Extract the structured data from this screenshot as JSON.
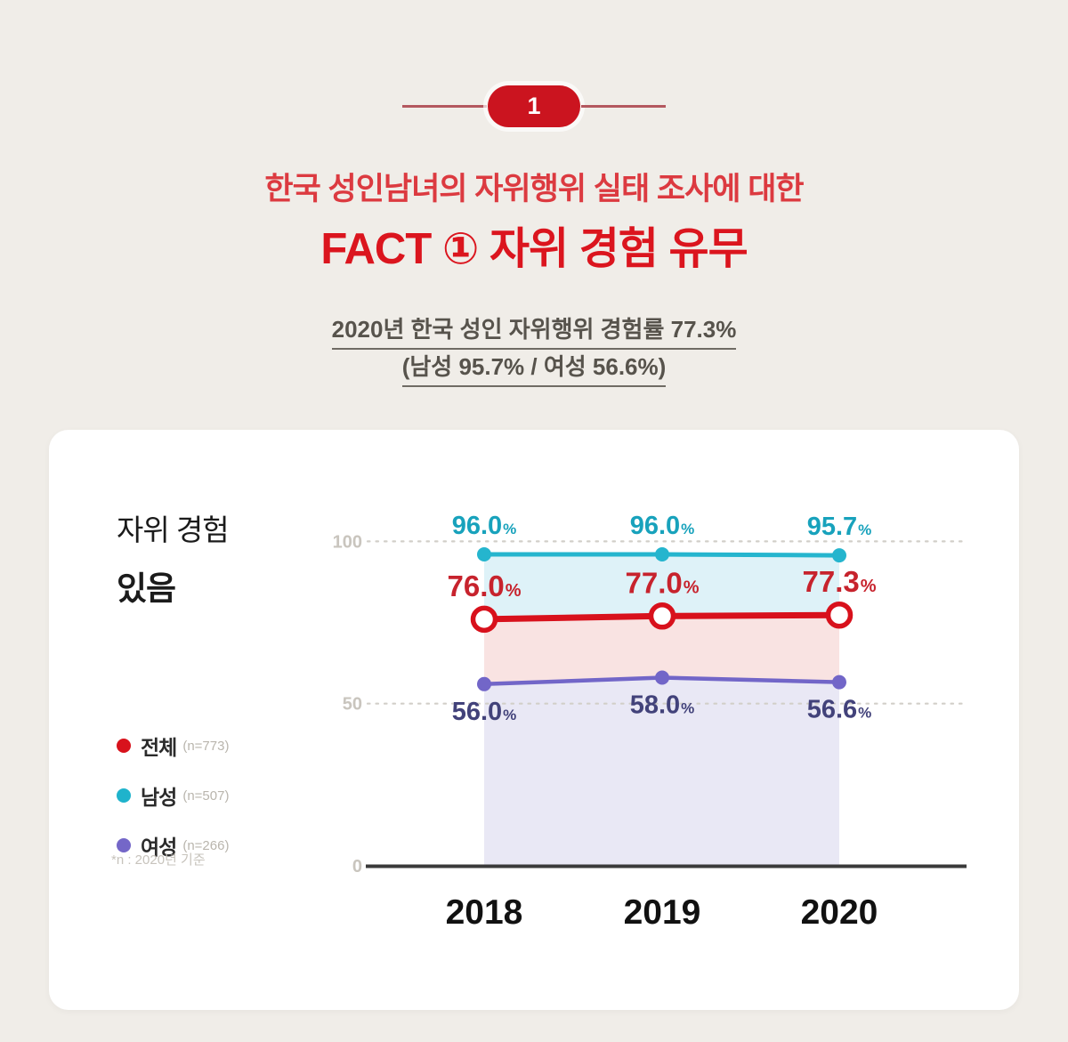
{
  "page": {
    "badge_number": "1",
    "title_line1": "한국 성인남녀의 자위행위 실태 조사에 대한",
    "title_line2": "FACT ① 자위 경험 유무",
    "subtitle_line1": "2020년 한국 성인 자위행위 경험률 77.3%",
    "subtitle_line2": "(남성 95.7% / 여성 56.6%)",
    "accent_red": "#db151e",
    "background": "#f0ede8"
  },
  "card": {
    "chart_label_line1": "자위 경험",
    "chart_label_line2": "있음",
    "legend": [
      {
        "name": "전체",
        "n": "(n=773)",
        "color": "#d8121c"
      },
      {
        "name": "남성",
        "n": "(n=507)",
        "color": "#1fb3cc"
      },
      {
        "name": "여성",
        "n": "(n=266)",
        "color": "#7467c8"
      }
    ],
    "footnote": "*n : 2020년 기준"
  },
  "chart_data": {
    "type": "line",
    "title": "자위 경험 있음 (연도별 경험률, %)",
    "x": [
      "2018",
      "2019",
      "2020"
    ],
    "series": [
      {
        "role": "male",
        "name": "남성",
        "values": [
          96.0,
          96.0,
          95.7
        ],
        "labels": [
          "96.0%",
          "96.0%",
          "95.7%"
        ],
        "line_color": "#25b5ce",
        "label_color": "#18a2bc",
        "area_color": "#def2f8"
      },
      {
        "role": "total",
        "name": "전체",
        "values": [
          76.0,
          77.0,
          77.3
        ],
        "labels": [
          "76.0%",
          "77.0%",
          "77.3%"
        ],
        "line_color": "#d8111c",
        "label_color": "#c7232d",
        "area_color": "#f9e3e2"
      },
      {
        "role": "female",
        "name": "여성",
        "values": [
          56.0,
          58.0,
          56.6
        ],
        "labels": [
          "56.0%",
          "58.0%",
          "56.6%"
        ],
        "line_color": "#7266c8",
        "label_color": "#42427a",
        "area_color": "#e9e8f5"
      }
    ],
    "yticks": [
      "0",
      "50",
      "100"
    ],
    "ylim": [
      0,
      118
    ],
    "grid": "dotted-horizontal-at-50-and-100",
    "legend_position": "left",
    "axis_color": "#3a3a3a",
    "tick_label_color": "#c9c5be",
    "x_label_color": "#111111"
  }
}
